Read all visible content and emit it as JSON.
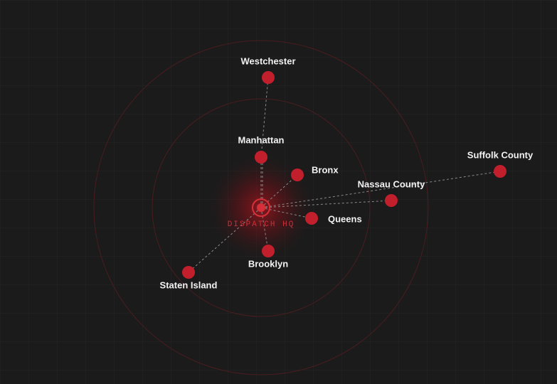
{
  "hq": {
    "label": "DISPATCH HQ"
  },
  "nodes": [
    {
      "label": "Westchester"
    },
    {
      "label": "Manhattan"
    },
    {
      "label": "Bronx"
    },
    {
      "label": "Nassau County"
    },
    {
      "label": "Suffolk County"
    },
    {
      "label": "Queens"
    },
    {
      "label": "Brooklyn"
    },
    {
      "label": "Staten Island"
    }
  ]
}
